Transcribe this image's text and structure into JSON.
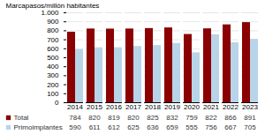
{
  "chart_data": {
    "type": "bar",
    "categories": [
      "2014",
      "2015",
      "2016",
      "2017",
      "2018",
      "2019",
      "2020",
      "2021",
      "2022",
      "2023"
    ],
    "series": [
      {
        "name": "Total",
        "color": "#8B0000",
        "values": [
          784,
          820,
          819,
          820,
          825,
          832,
          759,
          822,
          866,
          891
        ]
      },
      {
        "name": "Primoimplantes",
        "color": "#B8D4E8",
        "values": [
          590,
          611,
          612,
          625,
          636,
          659,
          555,
          756,
          667,
          705
        ]
      }
    ],
    "ylabel": "Marcapasos/millón habitantes",
    "ylim": [
      0,
      1000
    ],
    "yticks": [
      0,
      100,
      200,
      300,
      400,
      500,
      600,
      700,
      800,
      900,
      {
        "value": 1000,
        "label": "1.000"
      }
    ],
    "grid": true,
    "data_labels": true,
    "legend": "lower left"
  }
}
